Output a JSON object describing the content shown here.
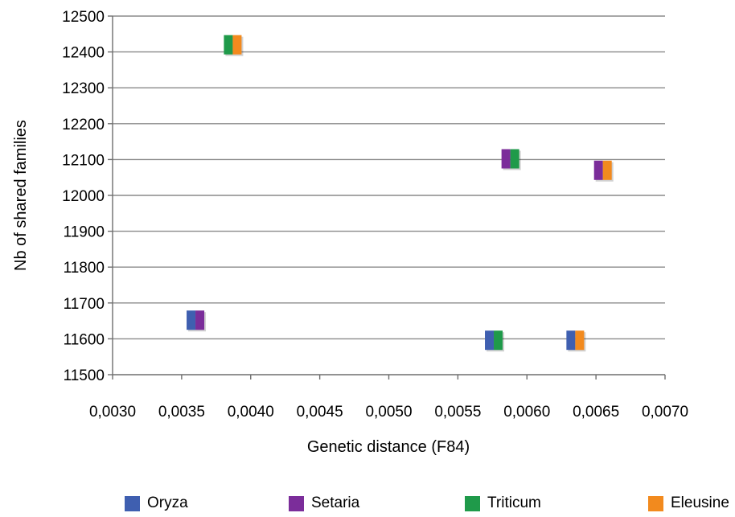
{
  "chart_data": {
    "type": "scatter",
    "title": "",
    "xlabel": "Genetic distance (F84)",
    "ylabel": "Nb of shared families",
    "xlim": [
      0.003,
      0.007
    ],
    "ylim": [
      11500,
      12500
    ],
    "xticks": [
      "0,0030",
      "0,0035",
      "0,0040",
      "0,0045",
      "0,0050",
      "0,0055",
      "0,0060",
      "0,0065",
      "0,0070"
    ],
    "yticks": [
      "11500",
      "11600",
      "11700",
      "11800",
      "11900",
      "12000",
      "12100",
      "12200",
      "12300",
      "12400",
      "12500"
    ],
    "grid": "horizontal",
    "legend_position": "bottom",
    "marker": "two-color square (species pair)",
    "species": [
      {
        "name": "Oryza",
        "color": "#3f5fb0"
      },
      {
        "name": "Setaria",
        "color": "#7b2d9a"
      },
      {
        "name": "Triticum",
        "color": "#1f9a4a"
      },
      {
        "name": "Eleusine",
        "color": "#f28a1e"
      }
    ],
    "points": [
      {
        "pair": [
          "Triticum",
          "Eleusine"
        ],
        "x": 0.00387,
        "y": 12420
      },
      {
        "pair": [
          "Setaria",
          "Triticum"
        ],
        "x": 0.00588,
        "y": 12102
      },
      {
        "pair": [
          "Setaria",
          "Eleusine"
        ],
        "x": 0.00655,
        "y": 12070
      },
      {
        "pair": [
          "Oryza",
          "Setaria"
        ],
        "x": 0.0036,
        "y": 11652
      },
      {
        "pair": [
          "Oryza",
          "Triticum"
        ],
        "x": 0.00576,
        "y": 11596
      },
      {
        "pair": [
          "Oryza",
          "Eleusine"
        ],
        "x": 0.00635,
        "y": 11596
      }
    ]
  }
}
